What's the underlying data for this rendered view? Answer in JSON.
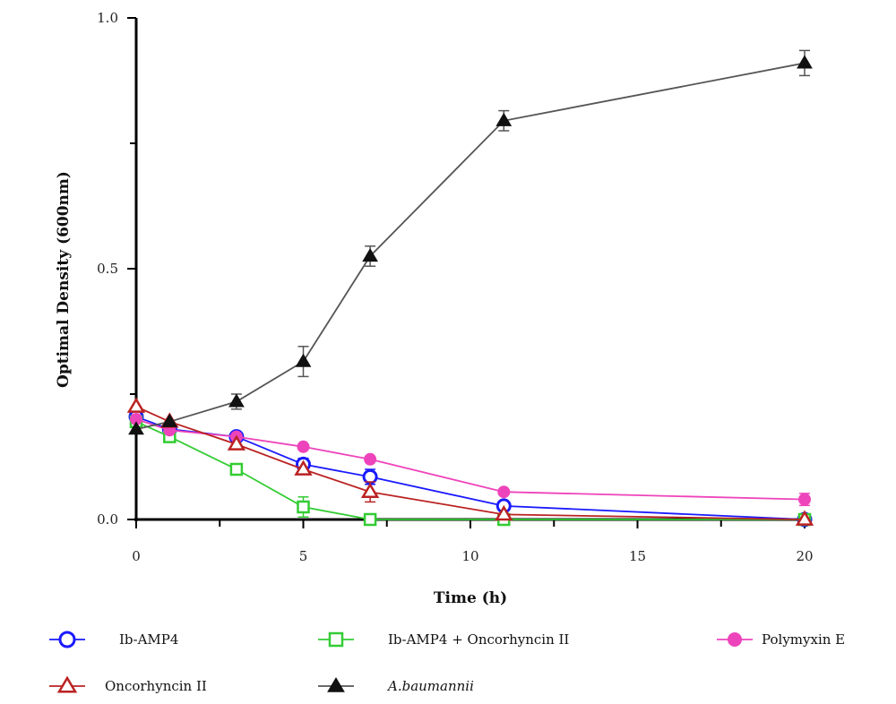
{
  "chart_data": {
    "type": "line",
    "title": "",
    "xlabel": "Time (h)",
    "ylabel": "Optimal Density (600nm)",
    "xlim": [
      0,
      20
    ],
    "ylim": [
      0,
      1.0
    ],
    "x_ticks": [
      "0",
      "5",
      "10",
      "15",
      "20"
    ],
    "y_ticks": [
      "0.0",
      "0.5",
      "1.0"
    ],
    "grid": false,
    "legend_position": "bottom",
    "series": [
      {
        "name": "Ib-AMP4",
        "color": "#1a1aff",
        "marker": "open-circle",
        "x": [
          0,
          1,
          3,
          5,
          7,
          11,
          20
        ],
        "y": [
          0.205,
          0.18,
          0.165,
          0.11,
          0.085,
          0.027,
          0.0
        ],
        "err": [
          0.005,
          0.005,
          0.005,
          0.012,
          0.015,
          0.005,
          0.005
        ]
      },
      {
        "name": "Ib-AMP4 + Oncorhyncin II",
        "color": "#33cc33",
        "marker": "open-square",
        "x": [
          0,
          1,
          3,
          5,
          7,
          11,
          20
        ],
        "y": [
          0.195,
          0.165,
          0.1,
          0.025,
          0.0,
          0.0,
          0.0
        ],
        "err": [
          0.005,
          0.005,
          0.005,
          0.02,
          0.005,
          0.005,
          0.005
        ]
      },
      {
        "name": "Polymyxin E",
        "color": "#ee44bb",
        "marker": "filled-circle",
        "x": [
          0,
          1,
          3,
          5,
          7,
          11,
          20
        ],
        "y": [
          0.2,
          0.178,
          0.165,
          0.145,
          0.12,
          0.055,
          0.04
        ],
        "err": [
          0.005,
          0.005,
          0.005,
          0.005,
          0.005,
          0.005,
          0.012
        ]
      },
      {
        "name": "Oncorhyncin II",
        "color": "#bb2222",
        "marker": "open-triangle",
        "x": [
          0,
          1,
          3,
          5,
          7,
          11,
          20
        ],
        "y": [
          0.225,
          0.195,
          0.15,
          0.1,
          0.055,
          0.01,
          0.0
        ],
        "err": [
          0.005,
          0.005,
          0.005,
          0.005,
          0.02,
          0.005,
          0.005
        ]
      },
      {
        "name": "A.baumannii",
        "color": "#111111",
        "line_color": "#555555",
        "marker": "filled-triangle",
        "x": [
          0,
          1,
          3,
          5,
          7,
          11,
          20
        ],
        "y": [
          0.18,
          0.195,
          0.235,
          0.315,
          0.525,
          0.795,
          0.91
        ],
        "err": [
          0.005,
          0.005,
          0.015,
          0.03,
          0.02,
          0.02,
          0.025
        ]
      }
    ]
  }
}
